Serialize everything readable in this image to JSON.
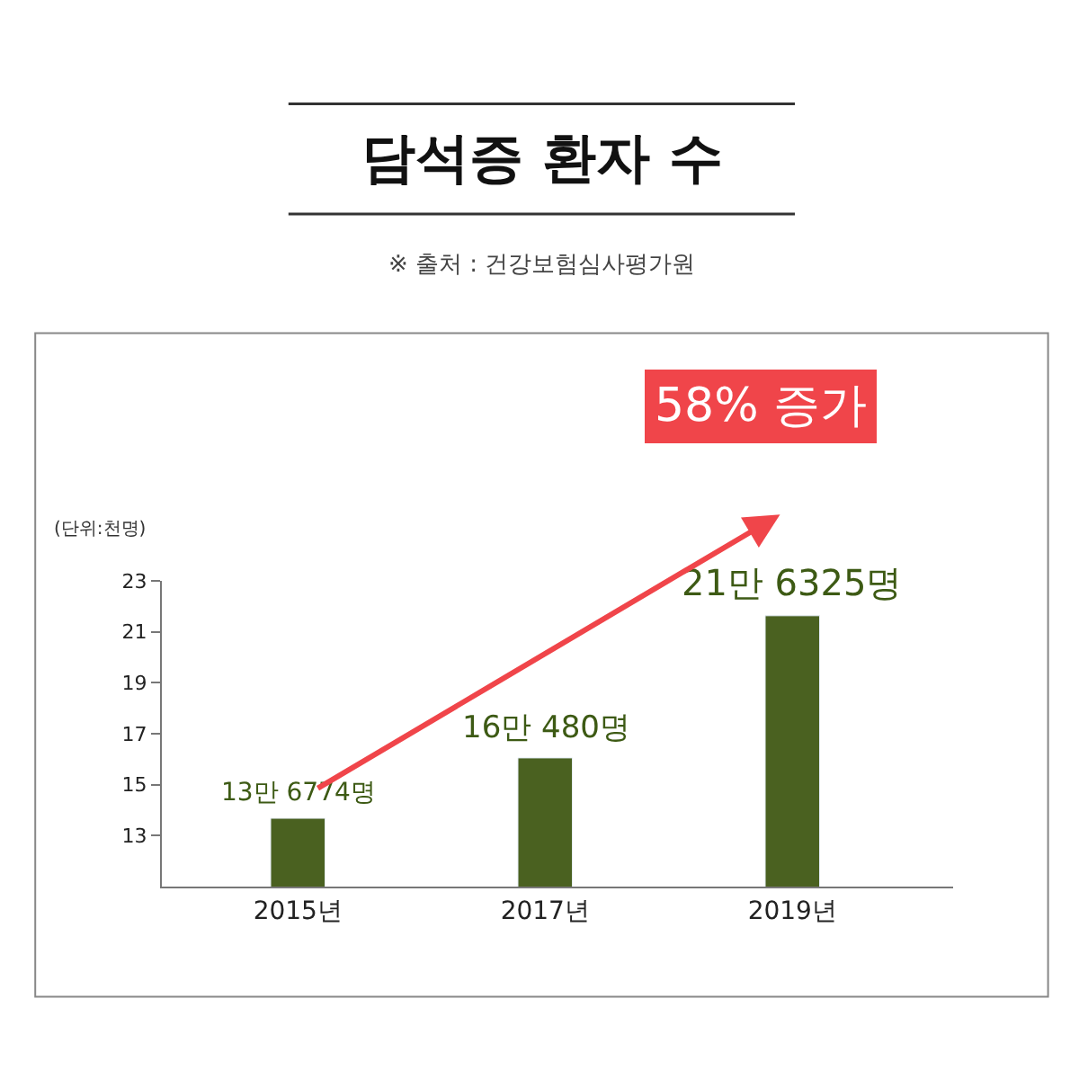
{
  "chart_data": {
    "type": "bar",
    "title": "담석증 환자 수",
    "subtitle": "※ 출처 : 건강보험심사평가원",
    "ylabel": "(단위:천명)",
    "categories": [
      "2015년",
      "2017년",
      "2019년"
    ],
    "values": [
      13.68,
      16.05,
      21.63
    ],
    "color": "#4a6120",
    "ylim": [
      11,
      23
    ],
    "yticks": [
      13,
      15,
      17,
      19,
      21,
      23
    ],
    "annotations": [
      "58% 증가",
      {
        "text": "13만 6774명",
        "x": "2015년",
        "y": 13.68
      },
      {
        "text": "16만 480명",
        "x": "2017년",
        "y": 16.05
      },
      {
        "text": "21만 6325명",
        "x": "2019년",
        "y": 21.63
      }
    ],
    "grid": false,
    "legend": false
  }
}
